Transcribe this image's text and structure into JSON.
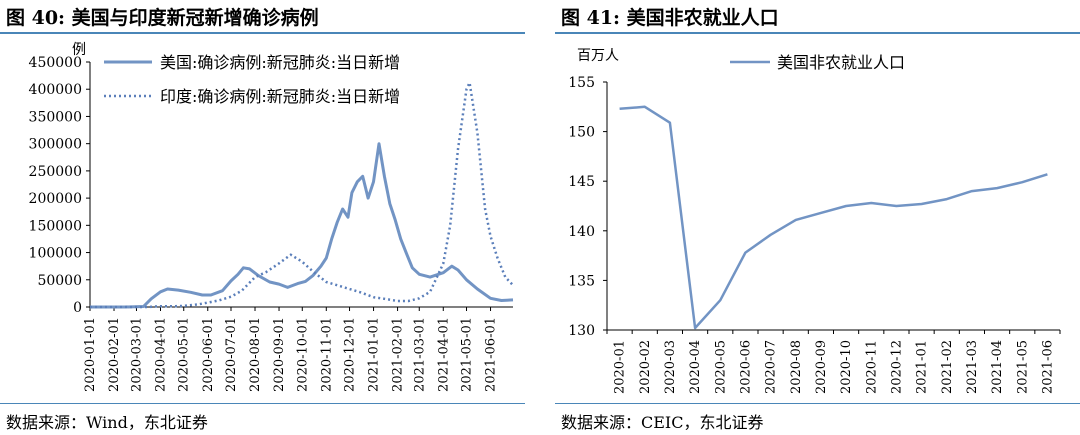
{
  "left": {
    "title": "图  40:  美国与印度新冠新增确诊病例",
    "source": "数据来源：Wind，东北证券",
    "chart_data": {
      "type": "line",
      "title": "美国与印度新冠新增确诊病例",
      "ylabel": "例",
      "ylim": [
        0,
        450000
      ],
      "yticks": [
        0,
        50000,
        100000,
        150000,
        200000,
        250000,
        300000,
        350000,
        400000,
        450000
      ],
      "xlim": [
        "2020-01-01",
        "2021-06-30"
      ],
      "x_ticks": [
        "2020-01-01",
        "2020-02-01",
        "2020-03-01",
        "2020-04-01",
        "2020-05-01",
        "2020-06-01",
        "2020-07-01",
        "2020-08-01",
        "2020-09-01",
        "2020-10-01",
        "2020-11-01",
        "2020-12-01",
        "2021-01-01",
        "2021-02-01",
        "2021-03-01",
        "2021-04-01",
        "2021-05-01",
        "2021-06-01"
      ],
      "legend_position": "top",
      "series": [
        {
          "name": "美国:确诊病例:新冠肺炎:当日新增",
          "style": "solid",
          "color": "#7294c4",
          "points": [
            [
              "2020-01-01",
              0
            ],
            [
              "2020-02-15",
              0
            ],
            [
              "2020-03-10",
              1000
            ],
            [
              "2020-03-20",
              15000
            ],
            [
              "2020-04-01",
              28000
            ],
            [
              "2020-04-10",
              33000
            ],
            [
              "2020-04-24",
              31000
            ],
            [
              "2020-05-10",
              27000
            ],
            [
              "2020-05-25",
              22000
            ],
            [
              "2020-06-05",
              22000
            ],
            [
              "2020-06-20",
              30000
            ],
            [
              "2020-07-01",
              48000
            ],
            [
              "2020-07-10",
              60000
            ],
            [
              "2020-07-17",
              72000
            ],
            [
              "2020-07-25",
              70000
            ],
            [
              "2020-08-05",
              58000
            ],
            [
              "2020-08-20",
              46000
            ],
            [
              "2020-09-01",
              42000
            ],
            [
              "2020-09-12",
              36000
            ],
            [
              "2020-09-25",
              43000
            ],
            [
              "2020-10-05",
              47000
            ],
            [
              "2020-10-15",
              58000
            ],
            [
              "2020-10-25",
              75000
            ],
            [
              "2020-11-01",
              90000
            ],
            [
              "2020-11-08",
              125000
            ],
            [
              "2020-11-15",
              155000
            ],
            [
              "2020-11-22",
              180000
            ],
            [
              "2020-11-29",
              165000
            ],
            [
              "2020-12-04",
              210000
            ],
            [
              "2020-12-11",
              230000
            ],
            [
              "2020-12-18",
              240000
            ],
            [
              "2020-12-25",
              200000
            ],
            [
              "2021-01-01",
              230000
            ],
            [
              "2021-01-08",
              300000
            ],
            [
              "2021-01-15",
              240000
            ],
            [
              "2021-01-22",
              190000
            ],
            [
              "2021-01-29",
              160000
            ],
            [
              "2021-02-05",
              125000
            ],
            [
              "2021-02-12",
              100000
            ],
            [
              "2021-02-20",
              72000
            ],
            [
              "2021-03-01",
              60000
            ],
            [
              "2021-03-15",
              55000
            ],
            [
              "2021-04-01",
              63000
            ],
            [
              "2021-04-12",
              75000
            ],
            [
              "2021-04-20",
              68000
            ],
            [
              "2021-05-01",
              50000
            ],
            [
              "2021-05-15",
              33000
            ],
            [
              "2021-06-01",
              16000
            ],
            [
              "2021-06-15",
              12000
            ],
            [
              "2021-06-30",
              13000
            ]
          ]
        },
        {
          "name": "印度:确诊病例:新冠肺炎:当日新增",
          "style": "dotted",
          "color": "#5b7fba",
          "points": [
            [
              "2020-01-01",
              0
            ],
            [
              "2020-03-15",
              0
            ],
            [
              "2020-04-01",
              1500
            ],
            [
              "2020-04-20",
              1500
            ],
            [
              "2020-05-01",
              2000
            ],
            [
              "2020-05-20",
              5000
            ],
            [
              "2020-06-01",
              8000
            ],
            [
              "2020-06-15",
              12000
            ],
            [
              "2020-07-01",
              19000
            ],
            [
              "2020-07-15",
              30000
            ],
            [
              "2020-08-01",
              55000
            ],
            [
              "2020-08-15",
              64000
            ],
            [
              "2020-09-01",
              80000
            ],
            [
              "2020-09-16",
              96000
            ],
            [
              "2020-10-01",
              83000
            ],
            [
              "2020-10-15",
              65000
            ],
            [
              "2020-11-01",
              46000
            ],
            [
              "2020-11-15",
              40000
            ],
            [
              "2020-12-01",
              33000
            ],
            [
              "2020-12-15",
              27000
            ],
            [
              "2021-01-01",
              18000
            ],
            [
              "2021-01-15",
              15000
            ],
            [
              "2021-02-01",
              11000
            ],
            [
              "2021-02-15",
              11000
            ],
            [
              "2021-03-01",
              16000
            ],
            [
              "2021-03-15",
              28000
            ],
            [
              "2021-04-01",
              80000
            ],
            [
              "2021-04-10",
              150000
            ],
            [
              "2021-04-20",
              290000
            ],
            [
              "2021-05-01",
              400000
            ],
            [
              "2021-05-05",
              412000
            ],
            [
              "2021-05-15",
              320000
            ],
            [
              "2021-05-25",
              180000
            ],
            [
              "2021-06-01",
              130000
            ],
            [
              "2021-06-10",
              90000
            ],
            [
              "2021-06-20",
              55000
            ],
            [
              "2021-06-30",
              40000
            ]
          ]
        }
      ]
    }
  },
  "right": {
    "title": "图  41:  美国非农就业人口",
    "source": "数据来源：CEIC，东北证券",
    "chart_data": {
      "type": "line",
      "title": "美国非农就业人口",
      "ylabel": "百万人",
      "ylim": [
        130,
        155
      ],
      "yticks": [
        130,
        135,
        140,
        145,
        150,
        155
      ],
      "legend_position": "top",
      "categories": [
        "2020-01",
        "2020-02",
        "2020-03",
        "2020-04",
        "2020-05",
        "2020-06",
        "2020-07",
        "2020-08",
        "2020-09",
        "2020-10",
        "2020-11",
        "2020-12",
        "2021-01",
        "2021-02",
        "2021-03",
        "2021-04",
        "2021-05",
        "2021-06"
      ],
      "series": [
        {
          "name": "美国非农就业人口",
          "color": "#7294c4",
          "values": [
            152.3,
            152.5,
            150.9,
            130.2,
            133.0,
            137.8,
            139.6,
            141.1,
            141.8,
            142.5,
            142.8,
            142.5,
            142.7,
            143.2,
            144.0,
            144.3,
            144.9,
            145.7
          ]
        }
      ]
    }
  }
}
